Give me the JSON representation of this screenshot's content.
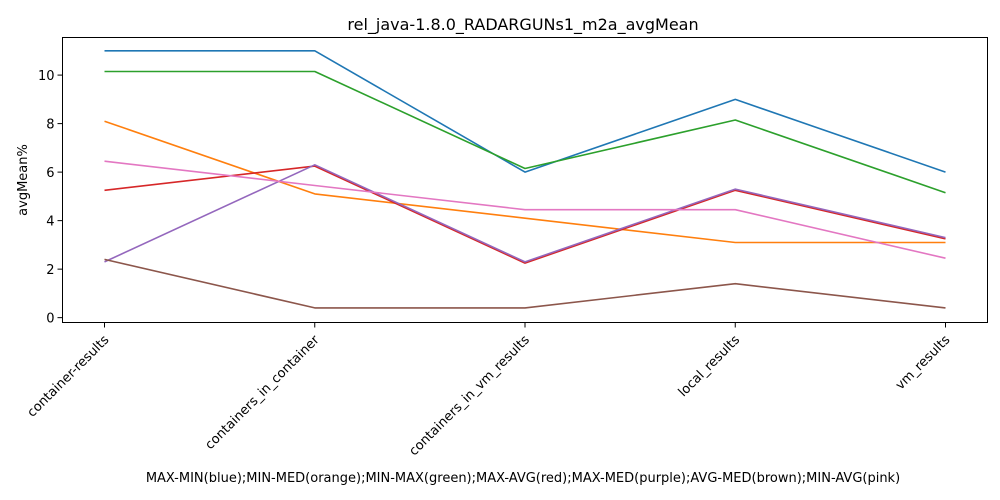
{
  "chart_data": {
    "type": "line",
    "title": "rel_java-1.8.0_RADARGUNs1_m2a_avgMean",
    "xlabel": "MAX-MIN(blue);MIN-MED(orange);MIN-MAX(green);MAX-AVG(red);MAX-MED(purple);AVG-MED(brown);MIN-AVG(pink)",
    "ylabel": "avgMean%",
    "categories": [
      "container-results",
      "containers_in_container",
      "containers_in_vm_results",
      "local_results",
      "vm_results"
    ],
    "ylim": [
      -0.2,
      11.55
    ],
    "yticks": [
      0,
      2,
      4,
      6,
      8,
      10
    ],
    "grid": false,
    "legend": "none",
    "series": [
      {
        "color": "#1f77b4",
        "values": [
          11.0,
          11.0,
          6.0,
          9.0,
          6.0
        ]
      },
      {
        "color": "#ff7f0e",
        "values": [
          8.1,
          5.1,
          4.1,
          3.1,
          3.1
        ]
      },
      {
        "color": "#2ca02c",
        "values": [
          10.15,
          10.15,
          6.15,
          8.15,
          5.15
        ]
      },
      {
        "color": "#d62728",
        "values": [
          5.25,
          6.25,
          2.25,
          5.25,
          3.25
        ]
      },
      {
        "color": "#9467bd",
        "values": [
          2.3,
          6.3,
          2.3,
          5.3,
          3.3
        ]
      },
      {
        "color": "#8c564b",
        "values": [
          2.4,
          0.4,
          0.4,
          1.4,
          0.4
        ]
      },
      {
        "color": "#e377c2",
        "values": [
          6.45,
          5.45,
          4.45,
          4.45,
          2.45
        ]
      }
    ]
  }
}
